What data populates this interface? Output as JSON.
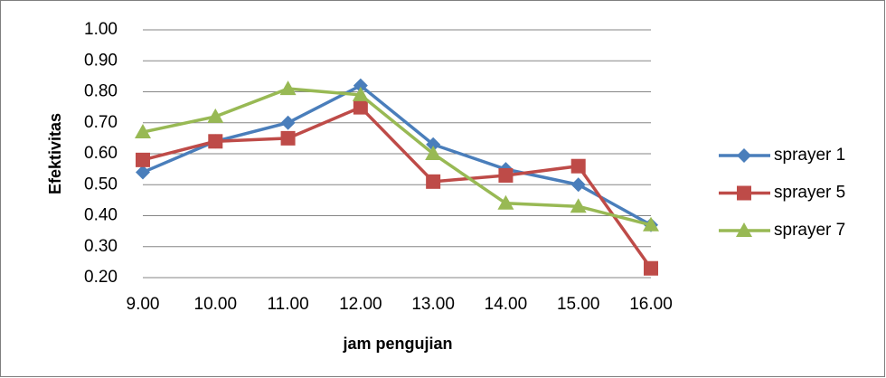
{
  "chart_data": {
    "type": "line",
    "y_label": "Efektivitas",
    "x_label": "jam pengujian",
    "categories": [
      "9.00",
      "10.00",
      "11.00",
      "12.00",
      "13.00",
      "14.00",
      "15.00",
      "16.00"
    ],
    "series": [
      {
        "name": "sprayer 1",
        "color": "#4a7ebb",
        "marker": "diamond",
        "values": [
          0.54,
          0.64,
          0.7,
          0.82,
          0.63,
          0.55,
          0.5,
          0.37
        ]
      },
      {
        "name": "sprayer 5",
        "color": "#be4b48",
        "marker": "square",
        "values": [
          0.58,
          0.64,
          0.65,
          0.75,
          0.51,
          0.53,
          0.56,
          0.23
        ]
      },
      {
        "name": "sprayer 7",
        "color": "#98b954",
        "marker": "triangle",
        "values": [
          0.67,
          0.72,
          0.81,
          0.79,
          0.6,
          0.44,
          0.43,
          0.37
        ]
      }
    ],
    "ylim": [
      0.2,
      1.0
    ],
    "yticks": [
      {
        "value": 0.2,
        "label": "0.20"
      },
      {
        "value": 0.3,
        "label": "0.30"
      },
      {
        "value": 0.4,
        "label": "0.40"
      },
      {
        "value": 0.5,
        "label": "0.50"
      },
      {
        "value": 0.6,
        "label": "0.60"
      },
      {
        "value": 0.7,
        "label": "0.70"
      },
      {
        "value": 0.8,
        "label": "0.80"
      },
      {
        "value": 0.9,
        "label": "0.90"
      },
      {
        "value": 1.0,
        "label": "1.00"
      }
    ],
    "grid": true,
    "legend": "right"
  }
}
